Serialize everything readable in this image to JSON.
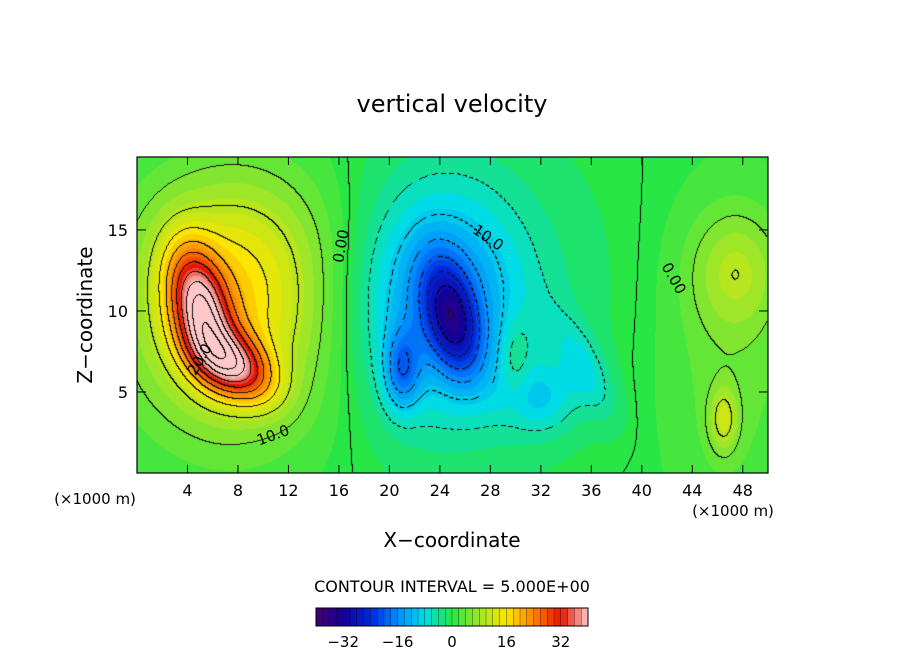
{
  "chart_data": {
    "type": "heatmap",
    "title": "vertical velocity",
    "xlabel": "X−coordinate",
    "ylabel": "Z−coordinate",
    "x_unit_label": "(×1000 m)",
    "xlim": [
      0,
      50
    ],
    "ylim": [
      0,
      19.5
    ],
    "x_ticks": [
      4,
      8,
      12,
      16,
      20,
      24,
      28,
      32,
      36,
      40,
      44,
      48
    ],
    "y_ticks": [
      5,
      10,
      15
    ],
    "contour_interval_label": "CONTOUR INTERVAL = 5.000E+00",
    "contour_interval": 5,
    "colorbar": {
      "range": [
        -40,
        40
      ],
      "ticks": [
        -32,
        -16,
        0,
        16,
        32
      ],
      "tick_labels": [
        "−32",
        "−16",
        "0",
        "16",
        "32"
      ]
    },
    "contour_labels": [
      {
        "text": "20.0",
        "x": 5.0,
        "z": 7.0,
        "angle": -60
      },
      {
        "text": "10.0",
        "x": 10.8,
        "z": 2.3,
        "angle": -20
      },
      {
        "text": "0.00",
        "x": 16.2,
        "z": 14.0,
        "angle": -80
      },
      {
        "text": "10.0",
        "x": 27.8,
        "z": 14.5,
        "angle": 35
      },
      {
        "text": "0.00",
        "x": 42.5,
        "z": 12.0,
        "angle": 60
      }
    ],
    "features": [
      {
        "kind": "updraft",
        "x": 5.0,
        "z": 10.2,
        "sx": 1.5,
        "sz": 2.6,
        "rot": 20,
        "amp": 30
      },
      {
        "kind": "updraft",
        "x": 7.6,
        "z": 6.7,
        "sx": 2.3,
        "sz": 1.3,
        "rot": -25,
        "amp": 27
      },
      {
        "kind": "updraft",
        "x": 7.2,
        "z": 9.5,
        "sx": 5.2,
        "sz": 4.6,
        "rot": 0,
        "amp": 10
      },
      {
        "kind": "updraft",
        "x": 7.8,
        "z": 10.0,
        "sx": 6.3,
        "sz": 6.3,
        "rot": 0,
        "amp": 6
      },
      {
        "kind": "updraft",
        "x": 8.2,
        "z": 14.5,
        "sx": 5.5,
        "sz": 3.5,
        "rot": 0,
        "amp": 4
      },
      {
        "kind": "downdraft",
        "x": 25.0,
        "z": 9.5,
        "sx": 1.4,
        "sz": 2.6,
        "rot": 20,
        "amp": -19
      },
      {
        "kind": "downdraft",
        "x": 21.0,
        "z": 6.3,
        "sx": 1.0,
        "sz": 1.7,
        "rot": 0,
        "amp": -12
      },
      {
        "kind": "downdraft",
        "x": 24.0,
        "z": 10.5,
        "sx": 4.2,
        "sz": 4.6,
        "rot": 0,
        "amp": -12
      },
      {
        "kind": "downdraft",
        "x": 25.5,
        "z": 11.0,
        "sx": 7.0,
        "sz": 6.3,
        "rot": 0,
        "amp": -5
      },
      {
        "kind": "downdraft",
        "x": 32.0,
        "z": 4.6,
        "sx": 2.2,
        "sz": 1.6,
        "rot": 0,
        "amp": -7
      },
      {
        "kind": "downdraft",
        "x": 35.5,
        "z": 6.5,
        "sx": 2.6,
        "sz": 1.1,
        "rot": -55,
        "amp": -6
      },
      {
        "kind": "updraft",
        "x": 46.5,
        "z": 3.3,
        "sx": 0.8,
        "sz": 1.4,
        "rot": 0,
        "amp": 9
      },
      {
        "kind": "updraft",
        "x": 47.5,
        "z": 12.5,
        "sx": 2.5,
        "sz": 2.6,
        "rot": 0,
        "amp": 7
      },
      {
        "kind": "updraft",
        "x": 47.0,
        "z": 7.0,
        "sx": 4.0,
        "sz": 7.5,
        "rot": 0,
        "amp": 4
      },
      {
        "kind": "updraft",
        "x": 30.0,
        "z": 7.0,
        "sx": 0.8,
        "sz": 1.8,
        "rot": 0,
        "amp": 4
      }
    ]
  }
}
